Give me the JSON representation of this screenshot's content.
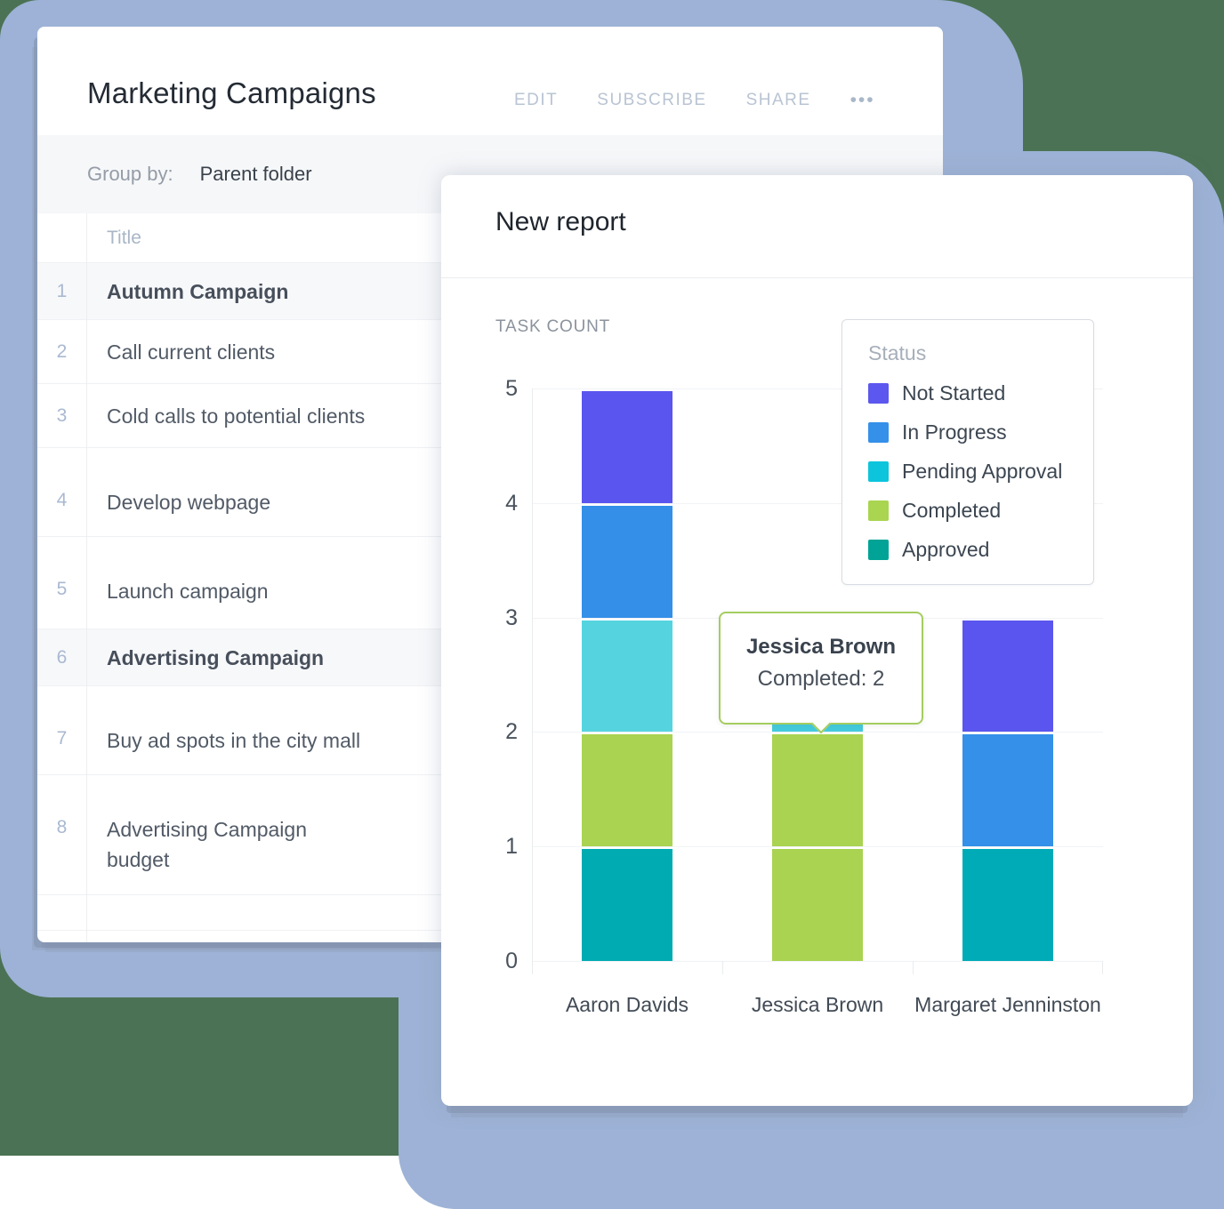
{
  "background": {
    "page_color": "#4b7254",
    "frame_color": "#9db2d6"
  },
  "campaigns_card": {
    "title": "Marketing Campaigns",
    "menu": {
      "edit": "EDIT",
      "subscribe": "SUBSCRIBE",
      "share": "SHARE",
      "more_icon": "•••"
    },
    "group_by": {
      "label": "Group by:",
      "value": "Parent folder"
    },
    "table": {
      "header": "Title",
      "rows": [
        {
          "num": "1",
          "title": "Autumn Campaign",
          "group": true
        },
        {
          "num": "2",
          "title": "Call current clients"
        },
        {
          "num": "3",
          "title": "Cold calls to potential clients"
        },
        {
          "num": "4",
          "title": "Develop webpage"
        },
        {
          "num": "5",
          "title": "Launch campaign"
        },
        {
          "num": "6",
          "title": "Advertising Campaign",
          "group": true
        },
        {
          "num": "7",
          "title": "Buy ad spots in the city mall"
        },
        {
          "num": "8",
          "title": "Advertising Campaign budget"
        }
      ]
    }
  },
  "report_card": {
    "title": "New report"
  },
  "chart_data": {
    "type": "bar",
    "subtype": "stacked",
    "title": "New report",
    "ylabel": "TASK COUNT",
    "xlabel": "",
    "categories": [
      "Aaron Davids",
      "Jessica Brown",
      "Margaret Jenninston"
    ],
    "ylim": [
      0,
      5
    ],
    "yticks": [
      0,
      1,
      2,
      3,
      4,
      5
    ],
    "ytick_labels_desc": [
      "5",
      "4",
      "3",
      "2",
      "1",
      "0"
    ],
    "grid": true,
    "legend": {
      "title": "Status",
      "position": "top-right",
      "items": [
        {
          "label": "Not Started",
          "color": "#5c57ee"
        },
        {
          "label": "In Progress",
          "color": "#3590e9"
        },
        {
          "label": "Pending Approval",
          "color": "#0cc5dd"
        },
        {
          "label": "Completed",
          "color": "#a9d551"
        },
        {
          "label": "Approved",
          "color": "#00a396"
        }
      ]
    },
    "series": [
      {
        "name": "Not Started",
        "values": [
          1,
          0,
          1
        ]
      },
      {
        "name": "In Progress",
        "values": [
          1,
          0,
          1
        ]
      },
      {
        "name": "Pending Approval",
        "values": [
          1,
          1,
          0
        ]
      },
      {
        "name": "Completed",
        "values": [
          1,
          2,
          0
        ]
      },
      {
        "name": "Approved",
        "values": [
          1,
          0,
          1
        ]
      }
    ],
    "bars": [
      {
        "person": "Aaron Davids",
        "blocks": [
          {
            "status": "Approved",
            "value": 1,
            "color": "#00abb2"
          },
          {
            "status": "Completed",
            "value": 1,
            "color": "#a9d351"
          },
          {
            "status": "Pending Approval",
            "value": 1,
            "color": "#55d4e0"
          },
          {
            "status": "In Progress",
            "value": 1,
            "color": "#338fe8"
          },
          {
            "status": "Not Started",
            "value": 1,
            "color": "#5a55ee"
          }
        ]
      },
      {
        "person": "Jessica Brown",
        "blocks": [
          {
            "status": "Completed",
            "value": 1,
            "color": "#a9d351"
          },
          {
            "status": "Completed",
            "value": 1,
            "color": "#a9d351"
          },
          {
            "status": "Pending Approval",
            "value": 1,
            "color": "#44cbdd"
          }
        ]
      },
      {
        "person": "Margaret Jenninston",
        "blocks": [
          {
            "status": "Approved",
            "value": 1,
            "color": "#00abb8"
          },
          {
            "status": "In Progress",
            "value": 1,
            "color": "#3490e8"
          },
          {
            "status": "Not Started",
            "value": 1,
            "color": "#5a55ee"
          }
        ]
      }
    ],
    "tooltip": {
      "title": "Jessica Brown",
      "line": "Completed: 2",
      "border_color": "#a4cd60"
    }
  }
}
